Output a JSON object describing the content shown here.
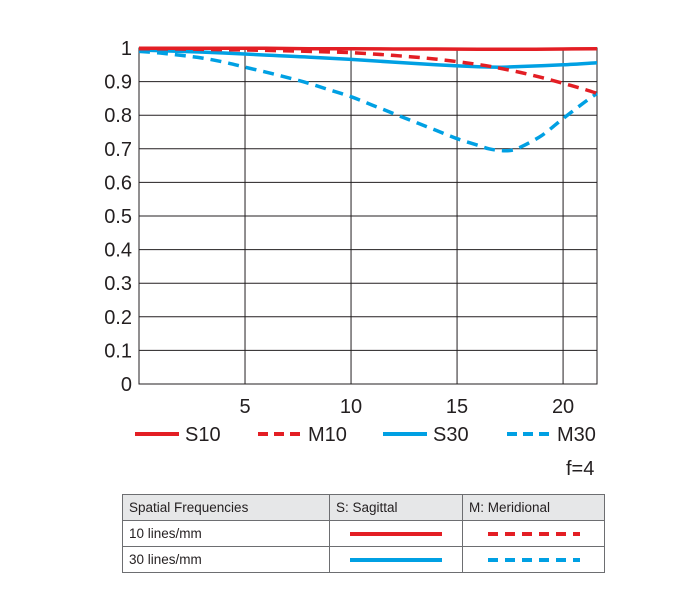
{
  "chart_data": {
    "type": "line",
    "xlim": [
      0,
      21.6
    ],
    "ylim": [
      0,
      1
    ],
    "x_ticks": [
      "5",
      "10",
      "15",
      "20"
    ],
    "y_ticks": [
      "0",
      "0.1",
      "0.2",
      "0.3",
      "0.4",
      "0.5",
      "0.6",
      "0.7",
      "0.8",
      "0.9",
      "1"
    ],
    "grid": true,
    "legend_position": "bottom",
    "series": [
      {
        "name": "S10",
        "color": "#e31e24",
        "dash": false,
        "x": [
          0,
          2,
          4,
          6,
          8,
          10,
          12,
          14,
          16,
          18,
          20,
          21.6
        ],
        "y": [
          0.999,
          0.999,
          0.999,
          0.999,
          0.998,
          0.998,
          0.997,
          0.997,
          0.996,
          0.996,
          0.997,
          0.998
        ]
      },
      {
        "name": "M10",
        "color": "#e31e24",
        "dash": true,
        "x": [
          0,
          2,
          4,
          6,
          8,
          10,
          12,
          14,
          16,
          17,
          18,
          19,
          20,
          21,
          21.6
        ],
        "y": [
          0.998,
          0.997,
          0.995,
          0.993,
          0.99,
          0.986,
          0.978,
          0.967,
          0.951,
          0.94,
          0.927,
          0.912,
          0.895,
          0.877,
          0.865
        ]
      },
      {
        "name": "S30",
        "color": "#00a0e3",
        "dash": false,
        "x": [
          0,
          2,
          4,
          6,
          8,
          10,
          12,
          14,
          16,
          17,
          18,
          20,
          21.6
        ],
        "y": [
          0.994,
          0.99,
          0.985,
          0.979,
          0.973,
          0.966,
          0.958,
          0.95,
          0.944,
          0.943,
          0.945,
          0.95,
          0.956
        ]
      },
      {
        "name": "M30",
        "color": "#00a0e3",
        "dash": true,
        "x": [
          0,
          1,
          2,
          3,
          4,
          5,
          6,
          7,
          8,
          9,
          10,
          11,
          12,
          13,
          14,
          15,
          16,
          16.5,
          17,
          17.5,
          18,
          19,
          20,
          21,
          21.6
        ],
        "y": [
          0.99,
          0.985,
          0.978,
          0.97,
          0.958,
          0.943,
          0.928,
          0.912,
          0.895,
          0.875,
          0.855,
          0.83,
          0.805,
          0.78,
          0.755,
          0.73,
          0.71,
          0.7,
          0.695,
          0.695,
          0.705,
          0.74,
          0.79,
          0.838,
          0.865
        ]
      }
    ]
  },
  "f_number": "f=4",
  "table": {
    "headers": [
      "Spatial Frequencies",
      "S: Sagittal",
      "M: Meridional"
    ],
    "rows": [
      {
        "label": "10 lines/mm",
        "color": "#e31e24"
      },
      {
        "label": "30 lines/mm",
        "color": "#00a0e3"
      }
    ]
  }
}
